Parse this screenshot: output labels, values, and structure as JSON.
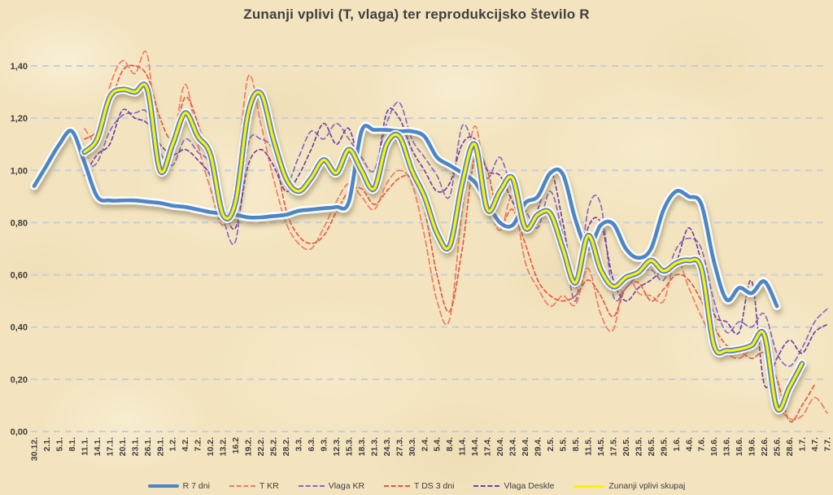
{
  "chart_data": {
    "type": "line",
    "title": "Zunanji vplivi (T, vlaga) ter reprodukcijsko število R",
    "grid": "horizontal-dashed",
    "legend_position": "bottom",
    "ylim": [
      0.0,
      1.4
    ],
    "y_step": 0.2,
    "y_tick_labels": [
      "0,00",
      "0,20",
      "0,40",
      "0,60",
      "0,80",
      "1,00",
      "1,20",
      "1,40"
    ],
    "categories": [
      "30.12.",
      "2.1.",
      "5.1.",
      "8.1.",
      "11.1.",
      "14.1.",
      "17.1.",
      "20.1.",
      "23.1.",
      "26.1.",
      "29.1.",
      "1.2.",
      "4.2.",
      "7.2.",
      "10.2.",
      "13.2.",
      "16.2",
      "19.2.",
      "22.2.",
      "25.2.",
      "28.2.",
      "3.3.",
      "6.3.",
      "9.3.",
      "12.3.",
      "15.3.",
      "18.3.",
      "21.3.",
      "24.3.",
      "27.3.",
      "30.3.",
      "2.4.",
      "5.4.",
      "8.4.",
      "11.4.",
      "14.4.",
      "17.4.",
      "20.4.",
      "23.4.",
      "26.4.",
      "29.4.",
      "2.5.",
      "5.5.",
      "8.5.",
      "11.5.",
      "14.5.",
      "17.5.",
      "20.5.",
      "23.5.",
      "26.5.",
      "29.5.",
      "1.6.",
      "4.6.",
      "7.6.",
      "10.6.",
      "13.6.",
      "16.6.",
      "19.6.",
      "22.6.",
      "25.6.",
      "28.6.",
      "1.7.",
      "4.7.",
      "7.7."
    ],
    "series": [
      {
        "name": "R 7 dni",
        "color": "#4c86c8",
        "role": "main",
        "dash": "",
        "values": [
          0.94,
          1.02,
          1.1,
          1.15,
          1.03,
          0.9,
          0.885,
          0.885,
          0.885,
          0.88,
          0.875,
          0.865,
          0.86,
          0.85,
          0.84,
          0.835,
          0.83,
          0.82,
          0.82,
          0.825,
          0.83,
          0.845,
          0.85,
          0.855,
          0.86,
          0.88,
          1.15,
          1.155,
          1.155,
          1.15,
          1.15,
          1.13,
          1.05,
          1.02,
          0.99,
          0.955,
          0.875,
          0.8,
          0.79,
          0.875,
          0.9,
          0.99,
          0.985,
          0.81,
          0.7,
          0.79,
          0.795,
          0.7,
          0.665,
          0.7,
          0.85,
          0.92,
          0.9,
          0.87,
          0.65,
          0.505,
          0.55,
          0.53,
          0.575,
          0.48,
          null,
          null,
          null,
          null
        ]
      },
      {
        "name": "T KR",
        "color": "#ee7d62",
        "role": "dashed",
        "dash": "7 4",
        "values": [
          null,
          null,
          null,
          null,
          1.16,
          1.12,
          1.32,
          1.42,
          1.37,
          1.44,
          1.0,
          1.1,
          1.33,
          1.1,
          0.93,
          0.79,
          0.95,
          1.36,
          1.18,
          0.97,
          0.8,
          0.72,
          0.7,
          0.78,
          0.88,
          0.95,
          0.9,
          0.85,
          0.95,
          1.0,
          0.95,
          0.75,
          0.5,
          0.43,
          0.85,
          1.17,
          0.9,
          0.77,
          0.9,
          0.65,
          0.55,
          0.48,
          0.52,
          0.485,
          0.625,
          0.45,
          0.39,
          0.6,
          0.53,
          0.52,
          0.5,
          0.66,
          0.55,
          0.44,
          0.35,
          0.3,
          0.28,
          0.32,
          0.34,
          0.12,
          0.05,
          0.06,
          0.13,
          0.07
        ]
      },
      {
        "name": "Vlaga KR",
        "color": "#8569c6",
        "role": "dashed",
        "dash": "6 4",
        "values": [
          null,
          null,
          null,
          null,
          1.01,
          1.03,
          1.15,
          1.21,
          1.22,
          1.22,
          1.07,
          1.02,
          1.12,
          1.07,
          1.02,
          0.82,
          0.73,
          1.1,
          1.12,
          1.08,
          0.95,
          1.05,
          1.15,
          1.12,
          1.18,
          1.12,
          1.05,
          1.0,
          1.18,
          1.26,
          1.12,
          1.05,
          0.98,
          0.9,
          1.17,
          1.08,
          0.97,
          1.05,
          0.92,
          0.85,
          0.78,
          0.92,
          0.75,
          0.5,
          0.85,
          0.87,
          0.52,
          0.55,
          0.6,
          0.62,
          0.58,
          0.7,
          0.74,
          0.7,
          0.5,
          0.38,
          0.42,
          0.4,
          0.45,
          0.3,
          0.25,
          0.32,
          0.42,
          0.47
        ]
      },
      {
        "name": "T DS 3 dni",
        "color": "#e35a43",
        "role": "dashed",
        "dash": "5 3.5",
        "values": [
          null,
          null,
          null,
          null,
          1.12,
          1.15,
          1.25,
          1.38,
          1.4,
          1.36,
          1.2,
          1.12,
          1.28,
          1.18,
          1.0,
          0.84,
          0.9,
          1.25,
          1.3,
          1.1,
          0.85,
          0.75,
          0.72,
          0.75,
          0.84,
          0.92,
          0.93,
          0.87,
          0.92,
          0.97,
          0.97,
          0.85,
          0.6,
          0.46,
          0.7,
          1.05,
          1.0,
          0.8,
          0.85,
          0.72,
          0.58,
          0.52,
          0.5,
          0.52,
          0.58,
          0.52,
          0.44,
          0.55,
          0.57,
          0.5,
          0.545,
          0.6,
          0.58,
          0.5,
          0.4,
          0.33,
          0.31,
          0.28,
          0.3,
          0.2,
          0.04,
          0.1,
          0.18,
          null
        ]
      },
      {
        "name": "Vlaga Deskle",
        "color": "#6f42a8",
        "role": "dashed",
        "dash": "4.5 3.5",
        "values": [
          null,
          null,
          null,
          null,
          0.98,
          1.06,
          1.1,
          1.23,
          1.2,
          1.18,
          1.1,
          1.06,
          1.08,
          1.04,
          0.98,
          0.86,
          0.78,
          1.02,
          1.08,
          1.02,
          0.92,
          0.98,
          1.08,
          1.18,
          1.1,
          1.16,
          1.0,
          0.96,
          1.22,
          1.2,
          1.08,
          1.0,
          0.92,
          0.95,
          1.1,
          1.12,
          1.0,
          0.98,
          0.88,
          0.8,
          0.85,
          1.0,
          0.8,
          0.55,
          0.78,
          0.8,
          0.58,
          0.5,
          0.55,
          0.58,
          0.62,
          0.65,
          0.78,
          0.65,
          0.45,
          0.42,
          0.38,
          0.575,
          0.18,
          0.28,
          0.35,
          0.3,
          0.38,
          0.41
        ]
      },
      {
        "name": "Zunanji vplivi skupaj",
        "color": "#fff101",
        "outline": "#5585c5",
        "role": "combo",
        "dash": "",
        "values": [
          null,
          null,
          null,
          null,
          1.07,
          1.12,
          1.28,
          1.31,
          1.3,
          1.31,
          1.0,
          1.1,
          1.22,
          1.13,
          1.06,
          0.83,
          0.88,
          1.22,
          1.295,
          1.12,
          0.97,
          0.92,
          0.97,
          1.04,
          0.99,
          1.08,
          1.0,
          0.93,
          1.1,
          1.13,
          1.0,
          0.9,
          0.76,
          0.71,
          0.95,
          1.1,
          0.85,
          0.92,
          0.97,
          0.78,
          0.83,
          0.835,
          0.7,
          0.57,
          0.75,
          0.62,
          0.555,
          0.59,
          0.61,
          0.655,
          0.615,
          0.645,
          0.655,
          0.625,
          0.33,
          0.31,
          0.315,
          0.33,
          0.37,
          0.09,
          0.17,
          0.26,
          null,
          null
        ]
      }
    ],
    "style": {
      "grid_color": "#c7cdda",
      "text_color": "#3f3f3f",
      "background": "#f3e4bf"
    }
  }
}
